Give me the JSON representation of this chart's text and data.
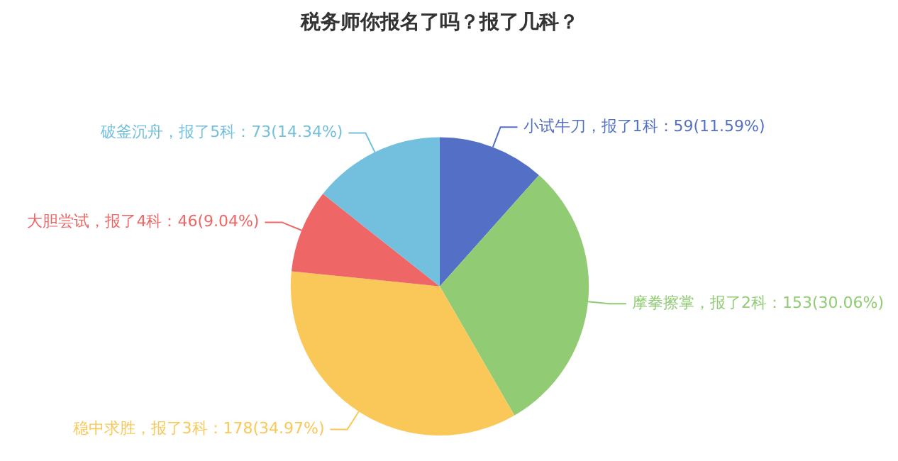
{
  "chart_data": {
    "type": "pie",
    "title": "税务师你报名了吗？报了几科？",
    "categories": [
      "小试牛刀，报了1科：59(11.59%)",
      "摩拳擦掌，报了2科：153(30.06%)",
      "稳中求胜，报了3科：178(34.97%)",
      "大胆尝试，报了4科：46(9.04%)",
      "破釜沉舟，报了5科：73(14.34%)"
    ],
    "values": [
      59,
      153,
      178,
      46,
      73
    ],
    "colors": [
      "#5470c6",
      "#91cc75",
      "#fac858",
      "#ee6666",
      "#73c0de"
    ],
    "legend": false
  }
}
